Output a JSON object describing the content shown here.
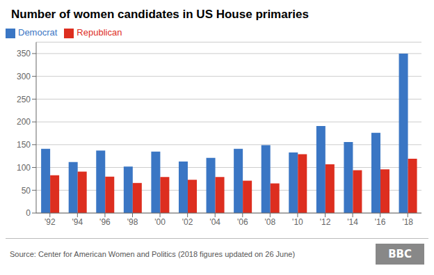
{
  "chart_data": {
    "type": "bar",
    "title": "Number of women candidates in US House primaries",
    "categories": [
      "'92",
      "'94",
      "'96",
      "'98",
      "'00",
      "'02",
      "'04",
      "'06",
      "'08",
      "'10",
      "'12",
      "'14",
      "'16",
      "'18"
    ],
    "series": [
      {
        "name": "Democrat",
        "color": "#3a76c4",
        "values": [
          141,
          112,
          137,
          102,
          135,
          113,
          121,
          141,
          149,
          133,
          191,
          156,
          176,
          350
        ]
      },
      {
        "name": "Republican",
        "color": "#dd2e1f",
        "values": [
          83,
          91,
          80,
          66,
          79,
          73,
          79,
          71,
          65,
          129,
          107,
          94,
          96,
          119
        ]
      }
    ],
    "ylim": [
      0,
      375
    ],
    "yticks": [
      0,
      50,
      100,
      150,
      200,
      250,
      300,
      350
    ],
    "grid": true,
    "legend": "upper left",
    "annotations": [
      "Source: Center for American Women and Politics (2018 figures updated on 26 June)",
      "BBC"
    ]
  }
}
